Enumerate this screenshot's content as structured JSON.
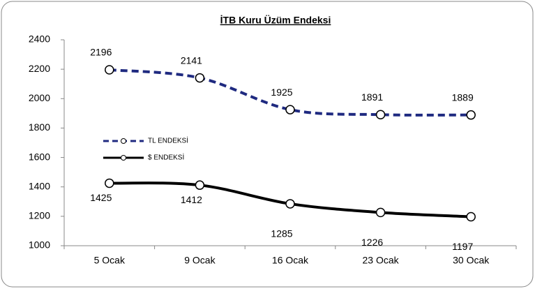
{
  "chart_data": {
    "type": "line",
    "title": "İTB Kuru Üzüm Endeksi",
    "categories": [
      "5 Ocak",
      "9 Ocak",
      "16 Ocak",
      "23 Ocak",
      "30 Ocak"
    ],
    "series": [
      {
        "name": "TL ENDEKSİ",
        "color": "#1f2a80",
        "dashed": true,
        "values": [
          2196,
          2141,
          1925,
          1891,
          1889
        ]
      },
      {
        "name": "$ ENDEKSİ",
        "color": "#000000",
        "dashed": false,
        "values": [
          1425,
          1412,
          1285,
          1226,
          1197
        ]
      }
    ],
    "ylim": [
      1000,
      2400
    ],
    "yticks": [
      1000,
      1200,
      1400,
      1600,
      1800,
      2000,
      2200,
      2400
    ],
    "grid": false,
    "legend": "left"
  }
}
